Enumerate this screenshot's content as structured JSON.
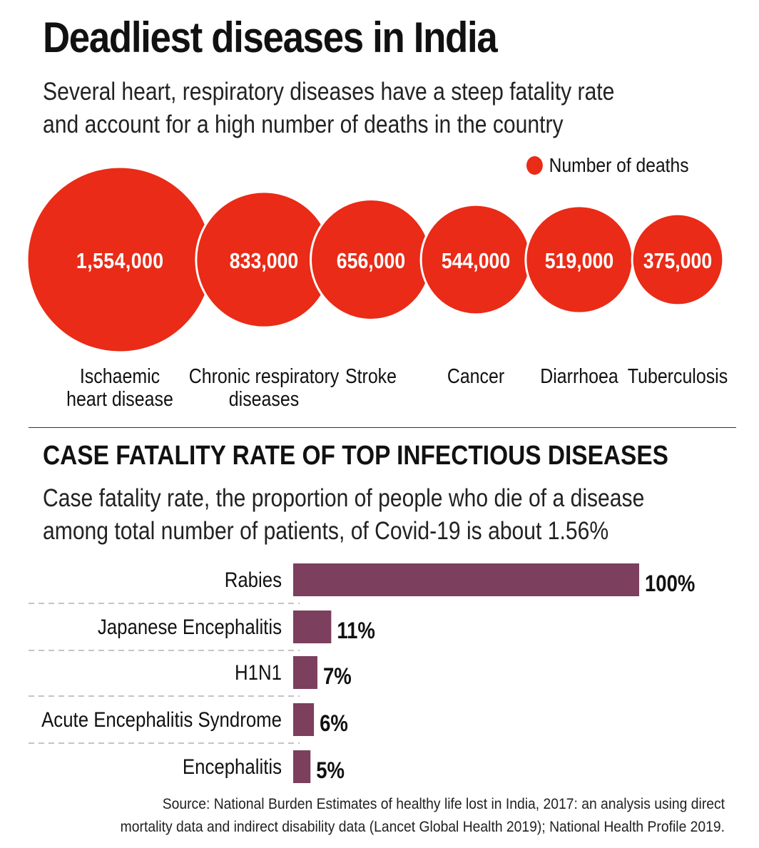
{
  "title": "Deadliest diseases in India",
  "subtitle_lines": [
    "Several heart, respiratory diseases have a steep fatality rate",
    "and account for a high number of deaths in the country"
  ],
  "section2_title": "CASE FATALITY RATE OF TOP INFECTIOUS DISEASES",
  "section2_subtitle_lines": [
    "Case fatality rate, the proportion of people who die of a disease",
    "among total number of patients, of Covid-19 is about 1.56%"
  ],
  "source_lines": [
    "Source: National Burden Estimates of healthy life lost in India, 2017: an analysis using direct",
    "mortality data and indirect disability data (Lancet Global Health 2019); National Health Profile 2019."
  ],
  "chart_data": [
    {
      "type": "bubble",
      "legend": "Number of deaths",
      "legend_position": "top-right",
      "color": "#e92b17",
      "categories": [
        [
          "Ischaemic",
          "heart disease"
        ],
        [
          "Chronic respiratory",
          "diseases"
        ],
        [
          "Stroke"
        ],
        [
          "Cancer"
        ],
        [
          "Diarrhoea"
        ],
        [
          "Tuberculosis"
        ]
      ],
      "values": [
        1554000,
        833000,
        656000,
        544000,
        519000,
        375000
      ],
      "labels": [
        "1,554,000",
        "833,000",
        "656,000",
        "544,000",
        "519,000",
        "375,000"
      ]
    },
    {
      "type": "bar",
      "orientation": "horizontal",
      "color": "#7c3f5e",
      "categories": [
        "Rabies",
        "Japanese Encephalitis",
        "H1N1",
        "Acute Encephalitis Syndrome",
        "Encephalitis"
      ],
      "values": [
        100,
        11,
        7,
        6,
        5
      ],
      "labels": [
        "100%",
        "11%",
        "7%",
        "6%",
        "5%"
      ],
      "unit": "%",
      "xlim": [
        0,
        100
      ]
    }
  ]
}
